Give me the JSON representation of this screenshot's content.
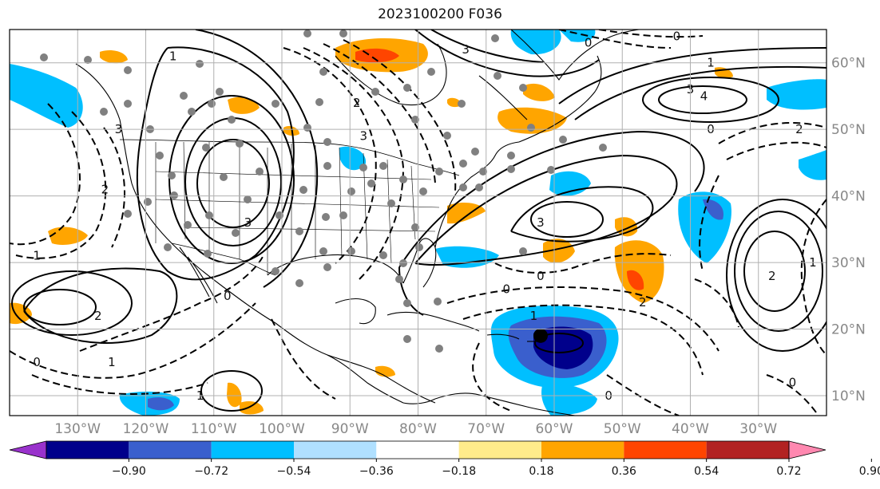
{
  "title": "2023100200 F036",
  "map": {
    "lon_min": -140,
    "lon_max": -20,
    "lat_min": 7,
    "lat_max": 65,
    "lon_ticks": [
      {
        "value": -130,
        "label": "130°W"
      },
      {
        "value": -120,
        "label": "120°W"
      },
      {
        "value": -110,
        "label": "110°W"
      },
      {
        "value": -100,
        "label": "100°W"
      },
      {
        "value": -90,
        "label": "90°W"
      },
      {
        "value": -80,
        "label": "80°W"
      },
      {
        "value": -70,
        "label": "70°W"
      },
      {
        "value": -60,
        "label": "60°W"
      },
      {
        "value": -50,
        "label": "50°W"
      },
      {
        "value": -40,
        "label": "40°W"
      },
      {
        "value": -30,
        "label": "30°W"
      }
    ],
    "lat_ticks": [
      {
        "value": 60,
        "label": "60°N"
      },
      {
        "value": 50,
        "label": "50°N"
      },
      {
        "value": 40,
        "label": "40°N"
      },
      {
        "value": 30,
        "label": "30°N"
      },
      {
        "value": 20,
        "label": "20°N"
      },
      {
        "value": 10,
        "label": "10°N"
      }
    ],
    "grid": true
  },
  "colorbar": {
    "labels": [
      "−0.90",
      "−0.72",
      "−0.54",
      "−0.36",
      "−0.18",
      "0.18",
      "0.36",
      "0.54",
      "0.72",
      "0.90"
    ],
    "colors": [
      "#9932cc",
      "#00008b",
      "#3a5fcd",
      "#00bfff",
      "#b0e0ff",
      "#ffffff",
      "#ffec8b",
      "#ffa500",
      "#ff4500",
      "#b22222",
      "#ff88b0"
    ]
  },
  "contour_labels": [
    {
      "text": "3",
      "lon": -105,
      "lat": 36
    },
    {
      "text": "2",
      "lon": -127,
      "lat": 22
    },
    {
      "text": "1",
      "lon": -136,
      "lat": 31
    },
    {
      "text": "0",
      "lon": -136,
      "lat": 15
    },
    {
      "text": "1",
      "lon": -125,
      "lat": 15
    },
    {
      "text": "1",
      "lon": -112,
      "lat": 10
    },
    {
      "text": "0",
      "lon": -108,
      "lat": 25
    },
    {
      "text": "3",
      "lon": -73,
      "lat": 62
    },
    {
      "text": "2",
      "lon": -89,
      "lat": 54
    },
    {
      "text": "3",
      "lon": -88,
      "lat": 49
    },
    {
      "text": "3",
      "lon": -62,
      "lat": 36
    },
    {
      "text": "0",
      "lon": -62,
      "lat": 28
    },
    {
      "text": "0",
      "lon": -55,
      "lat": 63
    },
    {
      "text": "0",
      "lon": -42,
      "lat": 64
    },
    {
      "text": "1",
      "lon": -37,
      "lat": 60
    },
    {
      "text": "3",
      "lon": -40,
      "lat": 56
    },
    {
      "text": "4",
      "lon": -38,
      "lat": 55
    },
    {
      "text": "0",
      "lon": -37,
      "lat": 50
    },
    {
      "text": "2",
      "lon": -24,
      "lat": 50
    },
    {
      "text": "2",
      "lon": -28,
      "lat": 28
    },
    {
      "text": "1",
      "lon": -22,
      "lat": 30
    },
    {
      "text": "0",
      "lon": -52,
      "lat": 10
    },
    {
      "text": "0",
      "lon": -25,
      "lat": 12
    },
    {
      "text": "2",
      "lon": -47,
      "lat": 24
    },
    {
      "text": "3",
      "lon": -124,
      "lat": 50
    },
    {
      "text": "2",
      "lon": -126,
      "lat": 41
    },
    {
      "text": "1",
      "lon": -116,
      "lat": 61
    },
    {
      "text": "1",
      "lon": -63,
      "lat": 22
    },
    {
      "text": "0",
      "lon": -67,
      "lat": 26
    }
  ],
  "marker": {
    "lon": -62,
    "lat": 19
  }
}
